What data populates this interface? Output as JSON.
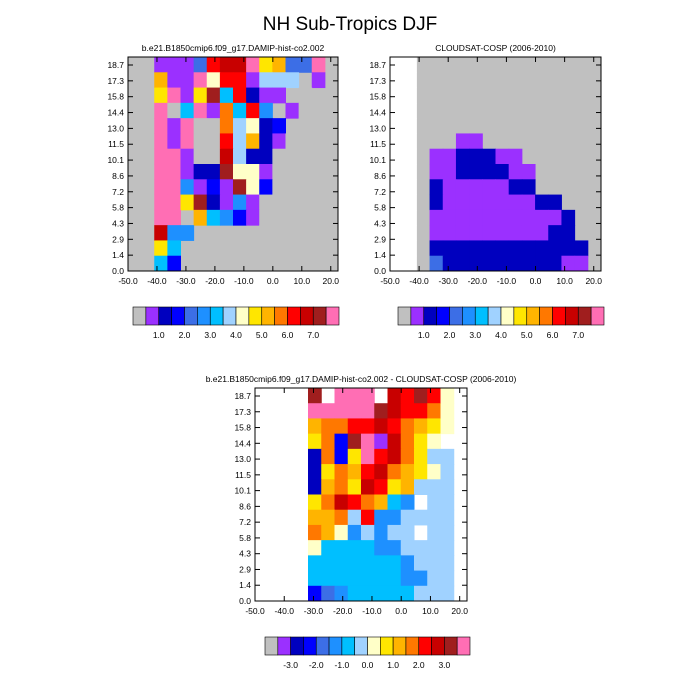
{
  "figure_title": "NH Sub-Tropics DJF",
  "chart_data": [
    {
      "type": "heatmap",
      "title": "b.e21.B1850cmip6.f09_g17.DAMIP-hist-co2.002",
      "x_tick_labels": [
        "-50.0",
        "-40.0",
        "-30.0",
        "-20.0",
        "-10.0",
        "0.0",
        "10.0",
        "20.0"
      ],
      "y_tick_labels": [
        "0.0",
        "1.4",
        "2.9",
        "4.3",
        "5.8",
        "7.2",
        "8.6",
        "10.1",
        "11.5",
        "13.0",
        "14.4",
        "15.8",
        "17.3",
        "18.7"
      ],
      "colorbar": {
        "colors": [
          "#c0c0c0",
          "#9b30ff",
          "#0000bf",
          "#0000ff",
          "#3c6ee6",
          "#1e90ff",
          "#00bfff",
          "#a0d2ff",
          "#ffffc8",
          "#ffe600",
          "#ffb400",
          "#ff7800",
          "#ff0000",
          "#c80000",
          "#a01e1e",
          "#ff6eb4"
        ],
        "labels": [
          "1.0",
          "2.0",
          "3.0",
          "4.0",
          "5.0",
          "6.0",
          "7.0"
        ]
      },
      "grid": [
        "..............8FA9.A9A9AB9A.......",
        "...............DCFFCEC9AA.........",
        "................DA7CB9AAA.........",
        "................DABB.DA7B.........",
        "................FDA.CA9DB..........",
        "................DC.6.C.E.........."
      ]
    },
    {
      "type": "heatmap",
      "title": "CLOUDSAT-COSP (2006-2010)",
      "x_tick_labels": [
        "-50.0",
        "-40.0",
        "-30.0",
        "-20.0",
        "-10.0",
        "0.0",
        "10.0",
        "20.0"
      ],
      "y_tick_labels": [
        "0.0",
        "1.4",
        "2.9",
        "4.3",
        "5.8",
        "7.2",
        "8.6",
        "10.1",
        "11.5",
        "13.0",
        "14.4",
        "15.8",
        "17.3",
        "18.7"
      ],
      "colorbar": {
        "colors": [
          "#c0c0c0",
          "#9b30ff",
          "#0000bf",
          "#0000ff",
          "#3c6ee6",
          "#1e90ff",
          "#00bfff",
          "#a0d2ff",
          "#ffffc8",
          "#ffe600",
          "#ffb400",
          "#ff7800",
          "#ff0000",
          "#c80000",
          "#a01e1e",
          "#ff6eb4"
        ],
        "labels": [
          "1.0",
          "2.0",
          "3.0",
          "4.0",
          "5.0",
          "6.0",
          "7.0"
        ]
      }
    },
    {
      "type": "heatmap",
      "title": "b.e21.B1850cmip6.f09_g17.DAMIP-hist-co2.002 - CLOUDSAT-COSP (2006-2010)",
      "x_tick_labels": [
        "-50.0",
        "-40.0",
        "-30.0",
        "-20.0",
        "-10.0",
        "0.0",
        "10.0",
        "20.0"
      ],
      "y_tick_labels": [
        "0.0",
        "1.4",
        "2.9",
        "4.3",
        "5.8",
        "7.2",
        "8.6",
        "10.1",
        "11.5",
        "13.0",
        "14.4",
        "15.8",
        "17.3",
        "18.7"
      ],
      "colorbar": {
        "colors": [
          "#c0c0c0",
          "#9b30ff",
          "#0000bf",
          "#0000ff",
          "#3c6ee6",
          "#1e90ff",
          "#00bfff",
          "#a0d2ff",
          "#ffffc8",
          "#ffe600",
          "#ffb400",
          "#ff7800",
          "#ff0000",
          "#c80000",
          "#a01e1e",
          "#ff6eb4"
        ],
        "labels": [
          "-3.0",
          "-2.0",
          "-1.0",
          "0.0",
          "1.0",
          "2.0",
          "3.0"
        ]
      }
    }
  ]
}
